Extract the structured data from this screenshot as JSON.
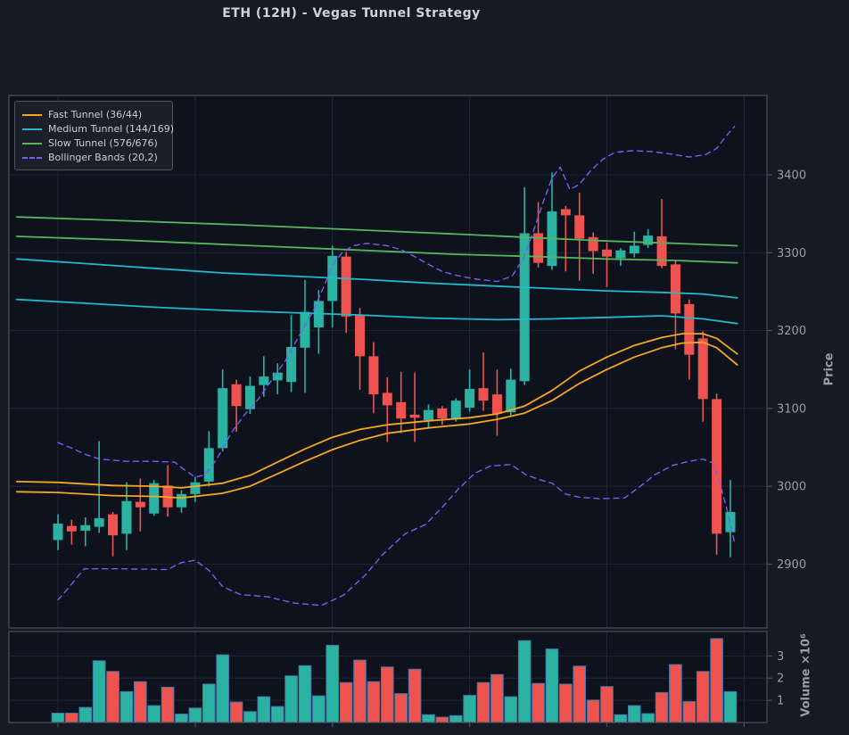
{
  "title": "ETH (12H) - Vegas Tunnel Strategy",
  "axes": {
    "price_label": "Price",
    "volume_label": "Volume ×10⁶",
    "price_ticks": [
      2900,
      3000,
      3100,
      3200,
      3300,
      3400
    ],
    "volume_ticks": [
      1,
      2,
      3
    ]
  },
  "colors": {
    "figure_bg": "#161a24",
    "plot_bg": "#0e121c",
    "grid": "#222734",
    "spine": "#4b5059",
    "tick_text": "#989da7",
    "up": "#2ab3a3",
    "down": "#ef5350",
    "fast": "#f5a623",
    "medium": "#24b7cd",
    "slow": "#56b45d",
    "bollinger": "#7c5cf0",
    "volume_edge": "#4679ad"
  },
  "legend": [
    {
      "label": "Fast Tunnel (36/44)",
      "color": "#f5a623",
      "dashed": false
    },
    {
      "label": "Medium Tunnel (144/169)",
      "color": "#24b7cd",
      "dashed": false
    },
    {
      "label": "Slow Tunnel (576/676)",
      "color": "#56b45d",
      "dashed": false
    },
    {
      "label": "Bollinger Bands (20,2)",
      "color": "#7c5cf0",
      "dashed": true
    }
  ],
  "chart_data": {
    "type": "candlestick+volume",
    "title": "ETH (12H) - Vegas Tunnel Strategy",
    "price_ylim": [
      2818,
      3502
    ],
    "volume_ylim": [
      0,
      4.1
    ],
    "x_grid_slots": [
      0,
      10,
      20,
      30,
      40,
      50
    ],
    "candles_ohlc": [
      [
        2931,
        2964,
        2918,
        2952
      ],
      [
        2949,
        2957,
        2925,
        2942
      ],
      [
        2943,
        2960,
        2923,
        2950
      ],
      [
        2948,
        3058,
        2940,
        2959
      ],
      [
        2964,
        2967,
        2910,
        2937
      ],
      [
        2939,
        3005,
        2918,
        2981
      ],
      [
        2980,
        3010,
        2942,
        2973
      ],
      [
        2965,
        3008,
        2962,
        3004
      ],
      [
        3001,
        3027,
        2961,
        2973
      ],
      [
        2973,
        2995,
        2966,
        2990
      ],
      [
        2990,
        3012,
        2980,
        3005
      ],
      [
        3006,
        3071,
        3000,
        3049
      ],
      [
        3049,
        3150,
        3045,
        3126
      ],
      [
        3131,
        3137,
        3070,
        3103
      ],
      [
        3099,
        3141,
        3093,
        3129
      ],
      [
        3130,
        3167,
        3115,
        3141
      ],
      [
        3136,
        3158,
        3118,
        3146
      ],
      [
        3134,
        3220,
        3121,
        3179
      ],
      [
        3178,
        3265,
        3120,
        3224
      ],
      [
        3204,
        3252,
        3170,
        3238
      ],
      [
        3238,
        3309,
        3204,
        3296
      ],
      [
        3295,
        3301,
        3197,
        3218
      ],
      [
        3220,
        3229,
        3124,
        3167
      ],
      [
        3167,
        3185,
        3094,
        3118
      ],
      [
        3120,
        3140,
        3057,
        3104
      ],
      [
        3108,
        3147,
        3068,
        3087
      ],
      [
        3092,
        3146,
        3057,
        3088
      ],
      [
        3085,
        3105,
        3075,
        3098
      ],
      [
        3100,
        3103,
        3079,
        3087
      ],
      [
        3086,
        3113,
        3083,
        3110
      ],
      [
        3101,
        3150,
        3096,
        3125
      ],
      [
        3126,
        3172,
        3097,
        3110
      ],
      [
        3118,
        3150,
        3065,
        3093
      ],
      [
        3095,
        3151,
        3091,
        3137
      ],
      [
        3135,
        3384,
        3130,
        3325
      ],
      [
        3325,
        3365,
        3281,
        3287
      ],
      [
        3283,
        3403,
        3278,
        3353
      ],
      [
        3356,
        3360,
        3276,
        3348
      ],
      [
        3348,
        3377,
        3264,
        3318
      ],
      [
        3320,
        3326,
        3273,
        3302
      ],
      [
        3304,
        3313,
        3256,
        3295
      ],
      [
        3293,
        3306,
        3283,
        3303
      ],
      [
        3299,
        3327,
        3294,
        3309
      ],
      [
        3310,
        3330,
        3306,
        3322
      ],
      [
        3321,
        3369,
        3280,
        3283
      ],
      [
        3285,
        3290,
        3176,
        3222
      ],
      [
        3234,
        3240,
        3137,
        3169
      ],
      [
        3190,
        3199,
        3083,
        3112
      ],
      [
        3112,
        3119,
        2912,
        2939
      ],
      [
        2941,
        3008,
        2909,
        2967
      ]
    ],
    "volumes_millions": [
      0.42,
      0.42,
      0.68,
      2.78,
      2.3,
      1.39,
      1.84,
      0.76,
      1.59,
      0.38,
      0.65,
      1.73,
      3.05,
      0.92,
      0.49,
      1.16,
      0.72,
      2.1,
      2.56,
      1.2,
      3.48,
      1.8,
      2.81,
      1.84,
      2.5,
      1.3,
      2.4,
      0.35,
      0.24,
      0.31,
      1.22,
      1.8,
      2.16,
      1.16,
      3.69,
      1.76,
      3.31,
      1.73,
      2.54,
      1.01,
      1.62,
      0.35,
      0.76,
      0.4,
      1.35,
      2.61,
      0.94,
      2.3,
      3.78,
      1.39
    ],
    "overlays": {
      "fast_upper": [
        [
          -3,
          3006
        ],
        [
          0,
          3005
        ],
        [
          4,
          3001
        ],
        [
          7,
          3000
        ],
        [
          9,
          2998
        ],
        [
          12,
          3004
        ],
        [
          14,
          3014
        ],
        [
          16,
          3031
        ],
        [
          18,
          3048
        ],
        [
          20,
          3063
        ],
        [
          22,
          3073
        ],
        [
          24,
          3079
        ],
        [
          27,
          3084
        ],
        [
          30,
          3088
        ],
        [
          32,
          3093
        ],
        [
          34,
          3103
        ],
        [
          36,
          3123
        ],
        [
          38,
          3148
        ],
        [
          40,
          3166
        ],
        [
          42,
          3181
        ],
        [
          44,
          3191
        ],
        [
          45.5,
          3196
        ],
        [
          47,
          3196
        ],
        [
          48,
          3190
        ],
        [
          49.5,
          3170
        ]
      ],
      "fast_lower": [
        [
          -3,
          2993
        ],
        [
          0,
          2992
        ],
        [
          4,
          2988
        ],
        [
          7,
          2987
        ],
        [
          9,
          2985
        ],
        [
          12,
          2991
        ],
        [
          14,
          3000
        ],
        [
          16,
          3016
        ],
        [
          18,
          3032
        ],
        [
          20,
          3047
        ],
        [
          22,
          3059
        ],
        [
          24,
          3068
        ],
        [
          27,
          3075
        ],
        [
          30,
          3080
        ],
        [
          32,
          3086
        ],
        [
          34,
          3094
        ],
        [
          36,
          3110
        ],
        [
          38,
          3132
        ],
        [
          40,
          3150
        ],
        [
          42,
          3166
        ],
        [
          44,
          3178
        ],
        [
          45.5,
          3184
        ],
        [
          47,
          3185
        ],
        [
          48,
          3178
        ],
        [
          49.5,
          3156
        ]
      ],
      "medium_upper": [
        [
          -3,
          3292
        ],
        [
          2,
          3286
        ],
        [
          7,
          3280
        ],
        [
          12,
          3274
        ],
        [
          17,
          3270
        ],
        [
          22,
          3266
        ],
        [
          27,
          3261
        ],
        [
          32,
          3257
        ],
        [
          36,
          3254
        ],
        [
          40,
          3251
        ],
        [
          44,
          3249
        ],
        [
          47,
          3247
        ],
        [
          49.5,
          3242
        ]
      ],
      "medium_lower": [
        [
          -3,
          3240
        ],
        [
          2,
          3235
        ],
        [
          7,
          3230
        ],
        [
          12,
          3226
        ],
        [
          17,
          3223
        ],
        [
          22,
          3220
        ],
        [
          27,
          3216
        ],
        [
          32,
          3214
        ],
        [
          36,
          3215
        ],
        [
          40,
          3217
        ],
        [
          44,
          3219
        ],
        [
          47,
          3215
        ],
        [
          49.5,
          3209
        ]
      ],
      "slow_upper": [
        [
          -3,
          3346
        ],
        [
          5,
          3341
        ],
        [
          13,
          3336
        ],
        [
          21,
          3330
        ],
        [
          29,
          3324
        ],
        [
          35,
          3319
        ],
        [
          40,
          3315
        ],
        [
          45,
          3312
        ],
        [
          49.5,
          3309
        ]
      ],
      "slow_lower": [
        [
          -3,
          3321
        ],
        [
          5,
          3316
        ],
        [
          13,
          3310
        ],
        [
          21,
          3304
        ],
        [
          29,
          3298
        ],
        [
          35,
          3295
        ],
        [
          40,
          3292
        ],
        [
          45,
          3290
        ],
        [
          49.5,
          3287
        ]
      ],
      "bb_upper": [
        [
          0,
          3056
        ],
        [
          1,
          3049
        ],
        [
          2,
          3041
        ],
        [
          3,
          3035
        ],
        [
          5,
          3032
        ],
        [
          7,
          3032
        ],
        [
          8.5,
          3031
        ],
        [
          9.3,
          3020
        ],
        [
          10,
          3012
        ],
        [
          10.6,
          3014
        ],
        [
          11.2,
          3025
        ],
        [
          11.8,
          3042
        ],
        [
          12.6,
          3068
        ],
        [
          13.6,
          3092
        ],
        [
          14.6,
          3112
        ],
        [
          15.6,
          3137
        ],
        [
          16.6,
          3162
        ],
        [
          17.6,
          3194
        ],
        [
          18.6,
          3225
        ],
        [
          19.5,
          3262
        ],
        [
          20,
          3284
        ],
        [
          20.7,
          3300
        ],
        [
          21.5,
          3309
        ],
        [
          22.5,
          3312
        ],
        [
          24,
          3309
        ],
        [
          25,
          3304
        ],
        [
          26,
          3295
        ],
        [
          27,
          3285
        ],
        [
          28,
          3276
        ],
        [
          29,
          3271
        ],
        [
          30.5,
          3266
        ],
        [
          32,
          3263
        ],
        [
          33.1,
          3270
        ],
        [
          33.9,
          3292
        ],
        [
          34.6,
          3325
        ],
        [
          35.3,
          3362
        ],
        [
          36,
          3396
        ],
        [
          36.6,
          3410
        ],
        [
          37.3,
          3381
        ],
        [
          38,
          3388
        ],
        [
          38.8,
          3405
        ],
        [
          39.7,
          3420
        ],
        [
          40.6,
          3429
        ],
        [
          41.8,
          3431
        ],
        [
          43.2,
          3430
        ],
        [
          44.6,
          3427
        ],
        [
          46,
          3423
        ],
        [
          47.2,
          3426
        ],
        [
          48,
          3434
        ],
        [
          48.7,
          3450
        ],
        [
          49.3,
          3462
        ]
      ],
      "bb_lower": [
        [
          0,
          2854
        ],
        [
          0.8,
          2870
        ],
        [
          1.9,
          2894
        ],
        [
          4.5,
          2894
        ],
        [
          8,
          2893
        ],
        [
          9,
          2902
        ],
        [
          10,
          2905
        ],
        [
          11,
          2892
        ],
        [
          12,
          2871
        ],
        [
          13.3,
          2861
        ],
        [
          15.3,
          2858
        ],
        [
          17.2,
          2850
        ],
        [
          19.2,
          2847
        ],
        [
          20.8,
          2860
        ],
        [
          22.4,
          2886
        ],
        [
          23.7,
          2913
        ],
        [
          25.3,
          2939
        ],
        [
          26.8,
          2951
        ],
        [
          28.1,
          2975
        ],
        [
          29.2,
          2997
        ],
        [
          30.4,
          3017
        ],
        [
          31.5,
          3026
        ],
        [
          33,
          3028
        ],
        [
          34.1,
          3015
        ],
        [
          35,
          3009
        ],
        [
          36,
          3004
        ],
        [
          37,
          2990
        ],
        [
          38,
          2986
        ],
        [
          39.5,
          2984
        ],
        [
          41.3,
          2985
        ],
        [
          42.5,
          3001
        ],
        [
          43.5,
          3015
        ],
        [
          44.8,
          3027
        ],
        [
          46,
          3032
        ],
        [
          47,
          3035
        ],
        [
          47.7,
          3030
        ],
        [
          48.2,
          3006
        ],
        [
          48.8,
          2967
        ],
        [
          49.3,
          2928
        ]
      ]
    }
  }
}
